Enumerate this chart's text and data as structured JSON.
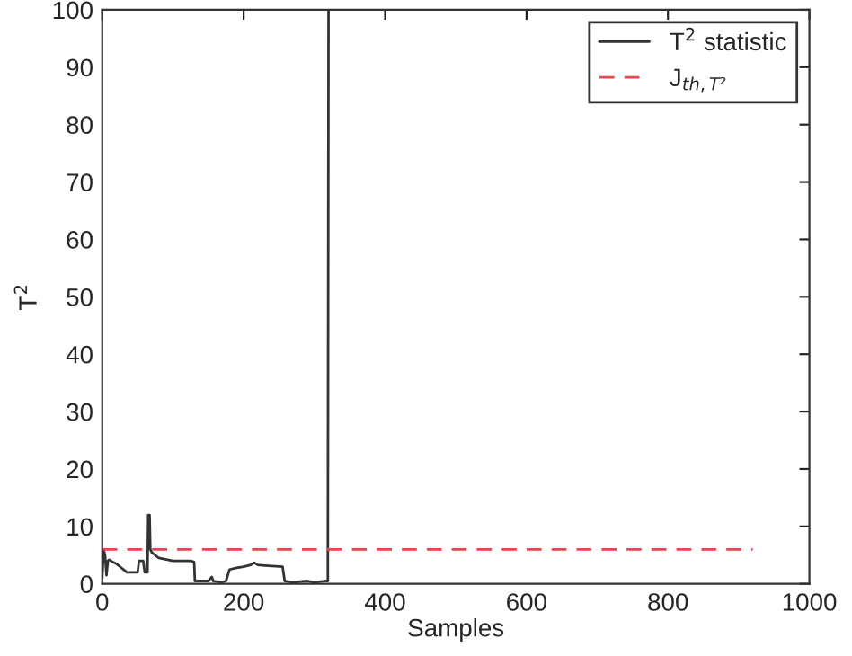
{
  "chart_data": {
    "type": "line",
    "xlabel": "Samples",
    "ylabel": "T$^{2}$",
    "xlim": [
      0,
      1000
    ],
    "xticks": [
      0,
      200,
      400,
      600,
      800,
      1000
    ],
    "ylim": [
      0,
      100
    ],
    "yticks": [
      0,
      10,
      20,
      30,
      40,
      50,
      60,
      70,
      80,
      90,
      100
    ],
    "grid": false,
    "legend": "top right",
    "marker": "none",
    "series": [
      {
        "name": "T$^{2}$ statistic",
        "color": "#333333",
        "line_style": "solid",
        "x": [
          0,
          2,
          4,
          6,
          8,
          10,
          15,
          20,
          25,
          30,
          35,
          40,
          45,
          50,
          52,
          58,
          60,
          64,
          65,
          67,
          68,
          70,
          80,
          100,
          125,
          130,
          131,
          150,
          155,
          157,
          170,
          175,
          180,
          190,
          200,
          210,
          215,
          220,
          230,
          255,
          258,
          270,
          290,
          300,
          315,
          319,
          320
        ],
        "values": [
          1,
          6,
          5,
          1.5,
          4,
          4.2,
          3.8,
          3.5,
          3,
          2.5,
          2,
          2,
          2,
          2,
          4,
          4,
          2,
          2,
          12,
          12,
          6,
          5.5,
          4.5,
          4,
          4,
          3.8,
          0.5,
          0.5,
          1.2,
          0.5,
          0.3,
          0.5,
          2.5,
          2.8,
          3,
          3.3,
          3.7,
          3.3,
          3.2,
          3,
          0.5,
          0.3,
          0.5,
          0.3,
          0.5,
          0.5,
          100
        ]
      },
      {
        "name": "J$_{th,T²}$",
        "color": "#e8454f",
        "line_style": "dashed",
        "x": [
          0,
          920
        ],
        "values": [
          6,
          6
        ]
      }
    ]
  }
}
